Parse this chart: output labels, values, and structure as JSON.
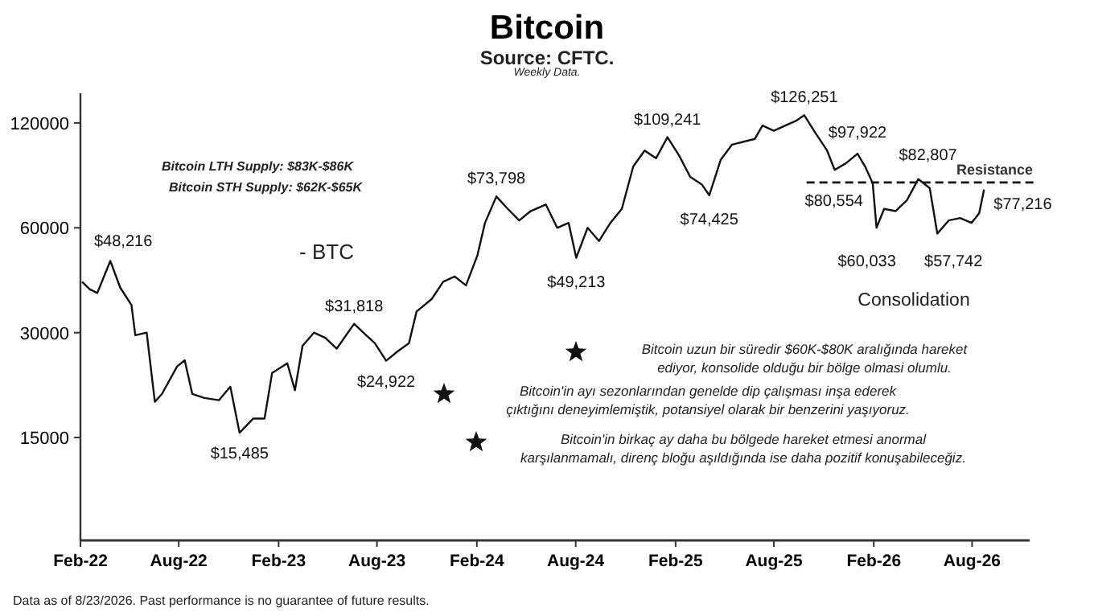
{
  "chart_data": {
    "type": "line",
    "title": "Bitcoin",
    "subtitle": "Source: CFTC.",
    "log": "y",
    "grid": false,
    "marker": "none",
    "line_style": "solid",
    "xlim": [
      "2022-02-01",
      "2026-11-15"
    ],
    "xticks": [
      {
        "value": "2022-02-01",
        "label": "Feb-22"
      },
      {
        "value": "2022-08-01",
        "label": "Aug-22"
      },
      {
        "value": "2023-02-01",
        "label": "Feb-23"
      },
      {
        "value": "2023-08-01",
        "label": "Aug-23"
      },
      {
        "value": "2024-02-01",
        "label": "Feb-24"
      },
      {
        "value": "2024-08-01",
        "label": "Aug-24"
      },
      {
        "value": "2025-02-01",
        "label": "Feb-25"
      },
      {
        "value": "2025-08-01",
        "label": "Aug-25"
      },
      {
        "value": "2026-02-01",
        "label": "Feb-26"
      },
      {
        "value": "2026-08-01",
        "label": "Aug-26"
      }
    ],
    "ylim": [
      7600,
      146000
    ],
    "yticks": [
      15000,
      30000,
      60000,
      120000
    ],
    "ref_lines": [
      {
        "axis": "y",
        "value": 81000,
        "label": "Resistance",
        "line_style": "dashed",
        "color": "#111111"
      }
    ],
    "series": [
      {
        "color": "#111111",
        "x": [
          "2022-02-04",
          "2022-02-18",
          "2022-03-04",
          "2022-03-28",
          "2022-04-15",
          "2022-05-06",
          "2022-05-13",
          "2022-06-03",
          "2022-06-18",
          "2022-07-01",
          "2022-07-29",
          "2022-08-12",
          "2022-08-26",
          "2022-09-16",
          "2022-10-14",
          "2022-11-04",
          "2022-11-21",
          "2022-12-16",
          "2023-01-06",
          "2023-01-20",
          "2023-02-17",
          "2023-03-03",
          "2023-03-17",
          "2023-04-07",
          "2023-04-28",
          "2023-05-19",
          "2023-06-20",
          "2023-07-07",
          "2023-07-28",
          "2023-08-18",
          "2023-09-08",
          "2023-09-29",
          "2023-10-13",
          "2023-11-10",
          "2023-12-01",
          "2023-12-22",
          "2024-01-12",
          "2024-02-02",
          "2024-02-16",
          "2024-03-08",
          "2024-03-29",
          "2024-04-19",
          "2024-05-10",
          "2024-06-07",
          "2024-06-28",
          "2024-07-19",
          "2024-08-02",
          "2024-08-23",
          "2024-09-13",
          "2024-10-04",
          "2024-10-25",
          "2024-11-15",
          "2024-12-06",
          "2024-12-27",
          "2025-01-17",
          "2025-02-07",
          "2025-02-28",
          "2025-03-21",
          "2025-04-04",
          "2025-04-25",
          "2025-05-16",
          "2025-06-06",
          "2025-06-27",
          "2025-07-11",
          "2025-08-01",
          "2025-08-22",
          "2025-09-12",
          "2025-09-26",
          "2025-10-17",
          "2025-11-07",
          "2025-11-21",
          "2025-12-12",
          "2026-01-02",
          "2026-01-16",
          "2026-01-30",
          "2026-02-06",
          "2026-02-20",
          "2026-03-13",
          "2026-04-03",
          "2026-04-24",
          "2026-05-15",
          "2026-05-29",
          "2026-06-19",
          "2026-07-10",
          "2026-07-31",
          "2026-08-14",
          "2026-08-23"
        ],
        "values": [
          42000,
          40000,
          39000,
          48216,
          40500,
          36000,
          29500,
          30000,
          19000,
          20000,
          24000,
          25000,
          20000,
          19500,
          19200,
          21000,
          15485,
          17000,
          17000,
          23000,
          24500,
          20500,
          27500,
          30000,
          29000,
          27000,
          31818,
          30000,
          28000,
          24922,
          26500,
          28000,
          34500,
          37500,
          42000,
          43500,
          41000,
          50000,
          62000,
          73798,
          68000,
          63000,
          67000,
          70000,
          60000,
          62000,
          49213,
          60000,
          55000,
          62000,
          68000,
          90000,
          100000,
          95000,
          109241,
          97000,
          84000,
          80000,
          74425,
          94000,
          104000,
          106000,
          108000,
          118000,
          114000,
          118000,
          122000,
          126251,
          112000,
          100000,
          88000,
          92000,
          97922,
          90000,
          80554,
          60033,
          68000,
          67000,
          72000,
          82807,
          78000,
          57742,
          63000,
          64000,
          62000,
          66000,
          77216
        ]
      }
    ],
    "annotations": [
      {
        "text": "$48,216",
        "x": "2022-03-28",
        "y": 48216
      },
      {
        "text": "$15,485",
        "x": "2022-11-21",
        "y": 15485
      },
      {
        "text": "$31,818",
        "x": "2023-06-20",
        "y": 31818
      },
      {
        "text": "$24,922",
        "x": "2023-08-18",
        "y": 24922
      },
      {
        "text": "$73,798",
        "x": "2024-03-08",
        "y": 73798
      },
      {
        "text": "$49,213",
        "x": "2024-08-02",
        "y": 49213
      },
      {
        "text": "$109,241",
        "x": "2025-01-17",
        "y": 109241
      },
      {
        "text": "$74,425",
        "x": "2025-04-04",
        "y": 74425
      },
      {
        "text": "$126,251",
        "x": "2025-09-26",
        "y": 126251
      },
      {
        "text": "$97,922",
        "x": "2026-01-02",
        "y": 97922
      },
      {
        "text": "$80,554",
        "x": "2026-01-30",
        "y": 80554
      },
      {
        "text": "$60,033",
        "x": "2026-02-06",
        "y": 60033
      },
      {
        "text": "$82,807",
        "x": "2026-04-24",
        "y": 82807
      },
      {
        "text": "$57,742",
        "x": "2026-05-29",
        "y": 57742
      },
      {
        "text": "$77,216",
        "x": "2026-08-23",
        "y": 77216
      },
      "Weekly Data.",
      "Bitcoin LTH Supply: $83K-$86K",
      "Bitcoin STH Supply: $62K-$65K",
      "- BTC",
      "Consolidation",
      "Bitcoin uzun bir süredir $60K-$80K aralığında hareket\nediyor, konsolide olduğu bir bölge olmasi olumlu.",
      "Bitcoin'in ayı sezonlarından genelde dip çalışması inşa ederek\nçıktığını deneyimlemiştik, potansiyel olarak bir benzerini yaşıyoruz.",
      "Bitcoin'in birkaç ay daha bu bölgede hareket etmesi anormal\nkarşılanmamalı, direnç bloğu aşıldığında ise daha pozitif konuşabileceğiz.",
      "Data as of 8/23/2026. Past performance is no guarantee of future results."
    ]
  }
}
